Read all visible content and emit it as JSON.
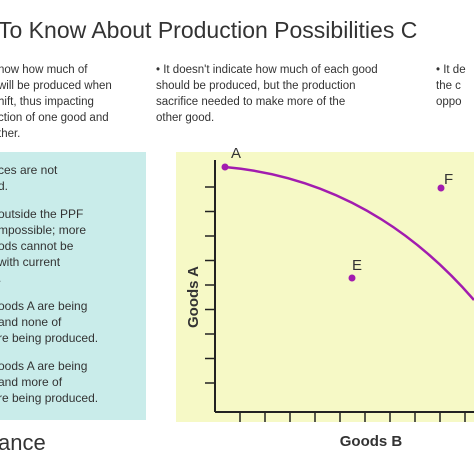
{
  "header": {
    "title": "To Know About Production Possibilities C"
  },
  "columns": [
    {
      "lines": [
        "now how much of",
        "will be produced when",
        "hift, thus impacting",
        "ction of one good and",
        "ther."
      ]
    },
    {
      "lines": [
        "• It doesn't indicate how much of each good",
        "should be produced, but the production",
        "sacrifice needed to make more of the",
        "other good."
      ]
    },
    {
      "lines": [
        "• It de",
        "the c",
        "oppo"
      ]
    }
  ],
  "sidebar": {
    "paragraphs": [
      [
        "ces are not",
        "d."
      ],
      [
        "outside the PPF",
        "mpossible; more",
        "ods cannot be",
        "with current",
        "."
      ],
      [
        "oods A are being",
        "and none of",
        "re being produced."
      ],
      [
        "oods A are being",
        "and more of",
        "re being produced."
      ]
    ]
  },
  "footer": {
    "brand": "ance"
  },
  "diagram": {
    "y_label": "Goods A",
    "x_label": "Goods B",
    "points": [
      {
        "label": "A"
      },
      {
        "label": "E"
      },
      {
        "label": "F"
      }
    ]
  }
}
